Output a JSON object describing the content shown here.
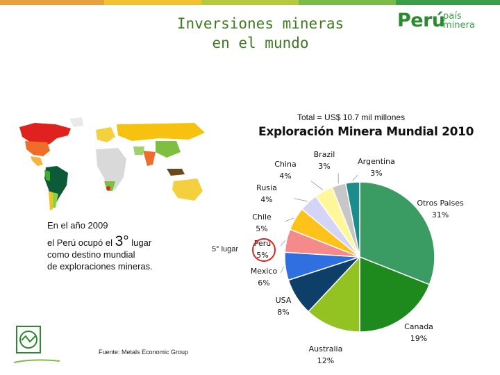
{
  "header": {
    "title_line1": "Inversiones mineras",
    "title_line2": "en el mundo",
    "top_bar_colors": [
      "#e8a23a",
      "#f2c230",
      "#b5c93a",
      "#7dbb47",
      "#3a9e4a"
    ]
  },
  "logo": {
    "brand": "Perú",
    "sub_line1": "país",
    "sub_line2": "minera",
    "color": "#2b8a2f"
  },
  "info": {
    "line1": "En el año 2009",
    "line2_pre": "el Perú ocupó el ",
    "line2_big": "3°",
    "line2_post": " lugar",
    "line3": "como destino mundial",
    "line4": "de exploraciones mineras."
  },
  "source": "Fuente: Metals Economic Group",
  "annotation": "5° lugar",
  "chart_data": {
    "type": "pie",
    "title": "Exploración Minera Mundial 2010",
    "subtitle": "Total = US$ 10.7 mil millones",
    "slices": [
      {
        "label": "Otros Paises",
        "value_text": "31%",
        "value": 31,
        "color": "#3a9b63"
      },
      {
        "label": "Canada",
        "value_text": "19%",
        "value": 19,
        "color": "#1e8a1e"
      },
      {
        "label": "Australia",
        "value_text": "12%",
        "value": 12,
        "color": "#92c323"
      },
      {
        "label": "USA",
        "value_text": "8%",
        "value": 8,
        "color": "#0d3f68"
      },
      {
        "label": "Mexico",
        "value_text": "6%",
        "value": 6,
        "color": "#2f6fdf"
      },
      {
        "label": "Perú",
        "value_text": "5%",
        "value": 5,
        "color": "#f58a8a"
      },
      {
        "label": "Chile",
        "value_text": "5%",
        "value": 5,
        "color": "#ffc21a"
      },
      {
        "label": "Rusia",
        "value_text": "4%",
        "value": 4,
        "color": "#d4d4f7"
      },
      {
        "label": "China",
        "value_text": "4%",
        "value": 4,
        "color": "#fff79a"
      },
      {
        "label": "Brazil",
        "value_text": "3%",
        "value": 3,
        "color": "#c7c7c7"
      },
      {
        "label": "Argentina",
        "value_text": "3%",
        "value": 3,
        "color": "#1a8c8c"
      }
    ]
  }
}
